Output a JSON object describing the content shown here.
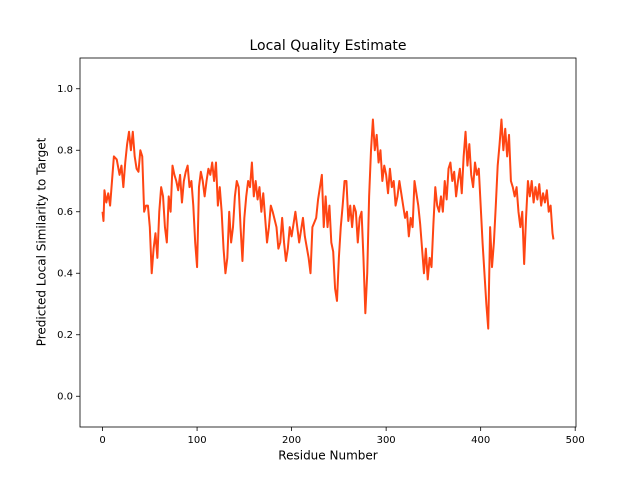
{
  "chart_data": {
    "type": "line",
    "title": "Local Quality Estimate",
    "x_label": "Residue Number",
    "y_label": "Predicted Local Similarity to Target",
    "x": [
      0,
      1,
      2,
      4,
      6,
      8,
      10,
      12,
      15,
      18,
      20,
      22,
      24,
      26,
      28,
      30,
      32,
      34,
      36,
      38,
      40,
      42,
      44,
      46,
      48,
      50,
      52,
      54,
      56,
      58,
      60,
      62,
      64,
      66,
      68,
      70,
      72,
      74,
      76,
      78,
      80,
      82,
      84,
      86,
      88,
      90,
      92,
      94,
      96,
      98,
      100,
      102,
      104,
      106,
      108,
      110,
      112,
      114,
      116,
      118,
      120,
      122,
      124,
      126,
      128,
      130,
      132,
      134,
      136,
      138,
      140,
      142,
      144,
      146,
      148,
      150,
      152,
      154,
      156,
      158,
      160,
      162,
      164,
      166,
      168,
      170,
      172,
      174,
      176,
      178,
      180,
      184,
      186,
      188,
      190,
      192,
      194,
      196,
      198,
      200,
      204,
      206,
      208,
      212,
      214,
      218,
      220,
      222,
      226,
      228,
      230,
      232,
      234,
      236,
      238,
      240,
      242,
      244,
      246,
      248,
      250,
      252,
      254,
      256,
      258,
      260,
      262,
      264,
      266,
      268,
      270,
      272,
      274,
      276,
      278,
      280,
      282,
      284,
      286,
      288,
      290,
      292,
      294,
      296,
      298,
      300,
      302,
      304,
      306,
      308,
      310,
      312,
      314,
      316,
      318,
      320,
      322,
      324,
      326,
      328,
      330,
      332,
      334,
      336,
      338,
      340,
      342,
      344,
      346,
      348,
      350,
      352,
      354,
      356,
      358,
      360,
      362,
      364,
      366,
      368,
      370,
      372,
      374,
      376,
      378,
      380,
      382,
      384,
      386,
      388,
      390,
      392,
      394,
      396,
      398,
      400,
      402,
      404,
      406,
      408,
      410,
      412,
      414,
      416,
      418,
      420,
      422,
      424,
      426,
      428,
      430,
      432,
      434,
      436,
      438,
      440,
      442,
      444,
      446,
      448,
      450,
      452,
      454,
      456,
      458,
      460,
      462,
      464,
      466,
      468,
      470,
      472,
      474,
      476,
      477
    ],
    "series": [
      {
        "color": "#ff4513",
        "values": [
          0.6,
          0.57,
          0.67,
          0.63,
          0.66,
          0.62,
          0.7,
          0.78,
          0.77,
          0.72,
          0.75,
          0.68,
          0.76,
          0.82,
          0.86,
          0.8,
          0.86,
          0.78,
          0.74,
          0.73,
          0.8,
          0.78,
          0.6,
          0.62,
          0.62,
          0.55,
          0.4,
          0.48,
          0.53,
          0.45,
          0.6,
          0.68,
          0.65,
          0.55,
          0.5,
          0.65,
          0.6,
          0.75,
          0.72,
          0.7,
          0.67,
          0.72,
          0.63,
          0.7,
          0.73,
          0.75,
          0.68,
          0.7,
          0.62,
          0.5,
          0.42,
          0.68,
          0.73,
          0.7,
          0.65,
          0.7,
          0.74,
          0.72,
          0.76,
          0.7,
          0.76,
          0.62,
          0.68,
          0.6,
          0.48,
          0.4,
          0.45,
          0.6,
          0.5,
          0.55,
          0.65,
          0.7,
          0.68,
          0.55,
          0.44,
          0.58,
          0.65,
          0.7,
          0.68,
          0.76,
          0.65,
          0.7,
          0.64,
          0.68,
          0.6,
          0.66,
          0.58,
          0.5,
          0.55,
          0.62,
          0.6,
          0.55,
          0.48,
          0.5,
          0.58,
          0.5,
          0.44,
          0.48,
          0.55,
          0.52,
          0.6,
          0.55,
          0.5,
          0.58,
          0.52,
          0.45,
          0.4,
          0.55,
          0.58,
          0.64,
          0.68,
          0.72,
          0.55,
          0.65,
          0.55,
          0.62,
          0.5,
          0.47,
          0.35,
          0.31,
          0.45,
          0.55,
          0.62,
          0.7,
          0.7,
          0.57,
          0.62,
          0.55,
          0.62,
          0.6,
          0.5,
          0.58,
          0.6,
          0.45,
          0.27,
          0.4,
          0.65,
          0.8,
          0.9,
          0.8,
          0.85,
          0.76,
          0.8,
          0.7,
          0.75,
          0.72,
          0.66,
          0.74,
          0.68,
          0.7,
          0.62,
          0.65,
          0.7,
          0.66,
          0.62,
          0.58,
          0.6,
          0.52,
          0.58,
          0.55,
          0.7,
          0.66,
          0.62,
          0.56,
          0.48,
          0.4,
          0.48,
          0.38,
          0.45,
          0.42,
          0.56,
          0.68,
          0.62,
          0.6,
          0.65,
          0.6,
          0.7,
          0.64,
          0.74,
          0.76,
          0.7,
          0.73,
          0.65,
          0.7,
          0.74,
          0.66,
          0.78,
          0.86,
          0.75,
          0.82,
          0.72,
          0.68,
          0.76,
          0.72,
          0.74,
          0.62,
          0.5,
          0.4,
          0.3,
          0.22,
          0.55,
          0.42,
          0.5,
          0.62,
          0.75,
          0.82,
          0.9,
          0.8,
          0.87,
          0.78,
          0.85,
          0.7,
          0.68,
          0.65,
          0.68,
          0.6,
          0.55,
          0.6,
          0.43,
          0.58,
          0.7,
          0.65,
          0.7,
          0.63,
          0.68,
          0.64,
          0.69,
          0.62,
          0.66,
          0.63,
          0.67,
          0.6,
          0.62,
          0.53,
          0.51
        ]
      }
    ],
    "xlim": [
      -23.85,
      500.85
    ],
    "ylim": [
      -0.1,
      1.1
    ],
    "xticks": [
      0,
      100,
      200,
      300,
      400,
      500
    ],
    "yticks": [
      {
        "value": 0,
        "label": "0.0"
      },
      0.2,
      0.4,
      0.6,
      0.8,
      {
        "value": 1,
        "label": "1.0"
      }
    ]
  }
}
